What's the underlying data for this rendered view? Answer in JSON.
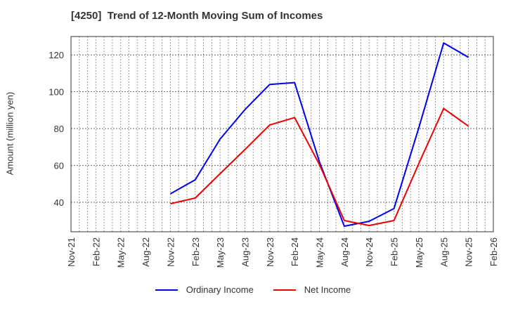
{
  "chart_data": {
    "type": "line",
    "title": "[4250]  Trend of 12-Month Moving Sum of Incomes",
    "xlabel": "",
    "ylabel": "Amount (million yen)",
    "x_ticks": [
      "Nov-21",
      "Feb-22",
      "May-22",
      "Aug-22",
      "Nov-22",
      "Feb-23",
      "May-23",
      "Aug-23",
      "Nov-23",
      "Feb-24",
      "May-24",
      "Aug-24",
      "Nov-24",
      "Feb-25",
      "May-25",
      "Aug-25",
      "Nov-25",
      "Feb-26"
    ],
    "y_ticks": [
      40,
      60,
      80,
      100,
      120
    ],
    "ylim": [
      24,
      130
    ],
    "grid": true,
    "legend_position": "bottom",
    "x": [
      "Nov-22",
      "Feb-23",
      "May-23",
      "Aug-23",
      "Nov-23",
      "Feb-24",
      "May-24",
      "Aug-24",
      "Nov-24",
      "Feb-25",
      "May-25",
      "Aug-25",
      "Nov-25"
    ],
    "series": [
      {
        "name": "Ordinary Income",
        "color": "#0000ee",
        "values": [
          44.6,
          52.2,
          74.3,
          90.3,
          104.0,
          105.0,
          62.0,
          27.0,
          29.7,
          36.6,
          80.4,
          126.5,
          118.7
        ]
      },
      {
        "name": "Net Income",
        "color": "#ee0000",
        "values": [
          39.2,
          42.3,
          55.5,
          68.6,
          82.0,
          86.0,
          60.5,
          30.1,
          27.4,
          30.1,
          61.0,
          90.9,
          81.3
        ]
      }
    ]
  }
}
